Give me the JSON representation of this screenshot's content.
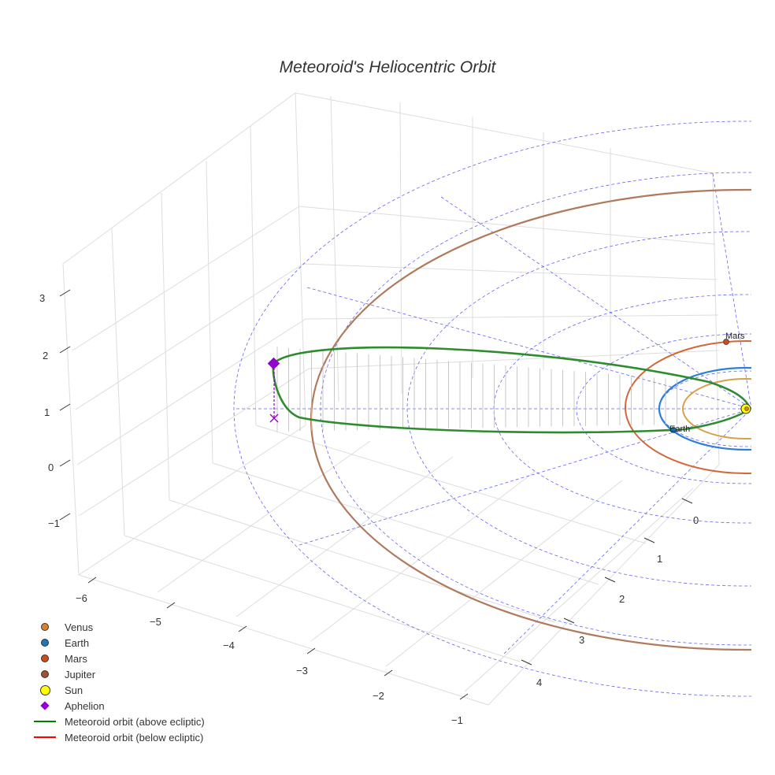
{
  "chart_data": {
    "type": "line",
    "title": "Meteoroid's Heliocentric Orbit",
    "x_ticks": [
      "−6",
      "−5",
      "−4",
      "−3",
      "−2",
      "−1"
    ],
    "y_ticks": [
      "0",
      "1",
      "2",
      "3",
      "4"
    ],
    "z_ticks": [
      "−1",
      "0",
      "1",
      "2",
      "3"
    ],
    "planet_labels": {
      "earth": "Earth",
      "mars": "Mars"
    },
    "legend": [
      {
        "id": "venus",
        "label": "Venus",
        "symbol": "dot",
        "color": "#d9822b"
      },
      {
        "id": "earth",
        "label": "Earth",
        "symbol": "dot",
        "color": "#1f77b4"
      },
      {
        "id": "mars",
        "label": "Mars",
        "symbol": "dot",
        "color": "#cc4b1e"
      },
      {
        "id": "jupiter",
        "label": "Jupiter",
        "symbol": "dot",
        "color": "#a0522d"
      },
      {
        "id": "sun",
        "label": "Sun",
        "symbol": "sun",
        "color": "#ffff00"
      },
      {
        "id": "aphelion",
        "label": "Aphelion",
        "symbol": "diamond",
        "color": "#9400d3"
      },
      {
        "id": "orbit-above",
        "label": "Meteoroid orbit (above ecliptic)",
        "symbol": "line",
        "color": "#008000"
      },
      {
        "id": "orbit-below",
        "label": "Meteoroid orbit (below ecliptic)",
        "symbol": "line",
        "color": "#ff0000"
      }
    ],
    "planet_orbits": [
      {
        "name": "Venus",
        "radius_au": 0.72,
        "color": "#d9a04a"
      },
      {
        "name": "Earth",
        "radius_au": 1.0,
        "color": "#2f7ed8"
      },
      {
        "name": "Mars",
        "radius_au": 1.52,
        "color": "#d2683a"
      },
      {
        "name": "Jupiter",
        "radius_au": 5.2,
        "color": "#b07a5c"
      }
    ],
    "aphelion": {
      "x": -5.9,
      "y": 0.1,
      "z": 1.2
    },
    "grid": true
  }
}
